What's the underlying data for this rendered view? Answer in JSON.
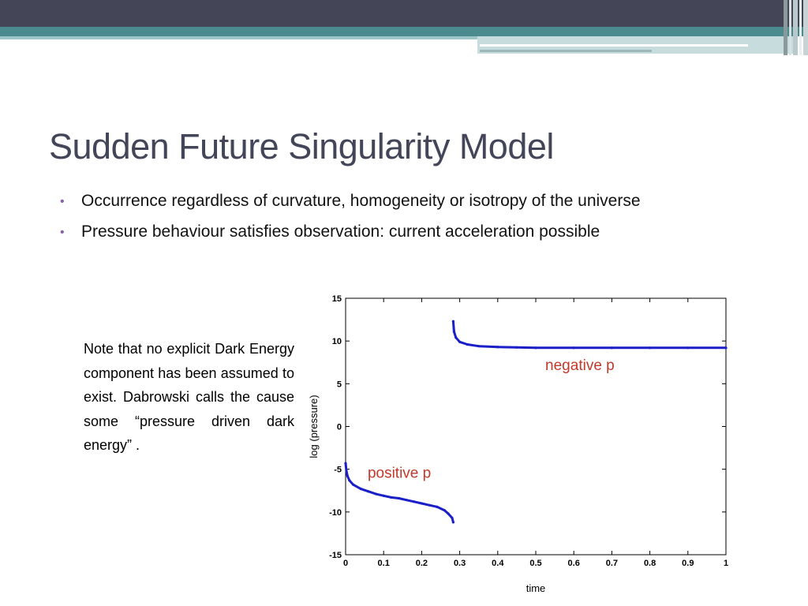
{
  "slide": {
    "title": "Sudden Future Singularity Model",
    "bullets": [
      "Occurrence regardless of curvature, homogeneity or isotropy of the universe",
      "Pressure behaviour satisfies observation: current acceleration possible"
    ],
    "note": "Note that no explicit Dark Energy component has been assumed to exist. Dabrowski calls the cause some “pressure driven dark energy” ."
  },
  "colors": {
    "header_dark": "#444556",
    "header_teal": "#4b8a8f",
    "title": "#434559",
    "bullet": "#8a62a6",
    "series": "#1a1fc8",
    "annotation": "#c0392b"
  },
  "chart_data": {
    "type": "scatter",
    "xlabel": "time",
    "ylabel": "log (pressure)",
    "xlim": [
      0,
      1
    ],
    "ylim": [
      -15,
      15
    ],
    "x_ticks": [
      "0",
      "0.1",
      "0.2",
      "0.3",
      "0.4",
      "0.5",
      "0.6",
      "0.7",
      "0.8",
      "0.9",
      "1"
    ],
    "y_ticks": [
      "15",
      "10",
      "5",
      "0",
      "-5",
      "-10",
      "-15"
    ],
    "annotations": [
      "negative p",
      "positive p"
    ],
    "series": [
      {
        "points": [
          [
            0.0,
            -4.3
          ],
          [
            0.002,
            -5.2
          ],
          [
            0.005,
            -5.8
          ],
          [
            0.01,
            -6.3
          ],
          [
            0.02,
            -6.8
          ],
          [
            0.04,
            -7.3
          ],
          [
            0.06,
            -7.6
          ],
          [
            0.08,
            -7.9
          ],
          [
            0.1,
            -8.1
          ],
          [
            0.12,
            -8.3
          ],
          [
            0.14,
            -8.4
          ],
          [
            0.16,
            -8.6
          ],
          [
            0.18,
            -8.8
          ],
          [
            0.2,
            -9.0
          ],
          [
            0.22,
            -9.2
          ],
          [
            0.24,
            -9.4
          ],
          [
            0.26,
            -9.8
          ],
          [
            0.27,
            -10.2
          ],
          [
            0.28,
            -10.7
          ],
          [
            0.283,
            -11.2
          ]
        ]
      },
      {
        "points": [
          [
            0.283,
            12.3
          ],
          [
            0.285,
            11.1
          ],
          [
            0.29,
            10.4
          ],
          [
            0.3,
            9.9
          ],
          [
            0.32,
            9.6
          ],
          [
            0.35,
            9.4
          ],
          [
            0.4,
            9.3
          ],
          [
            0.45,
            9.25
          ],
          [
            0.5,
            9.2
          ],
          [
            0.6,
            9.2
          ],
          [
            0.7,
            9.2
          ],
          [
            0.8,
            9.2
          ],
          [
            0.9,
            9.2
          ],
          [
            1.0,
            9.2
          ]
        ]
      }
    ]
  }
}
